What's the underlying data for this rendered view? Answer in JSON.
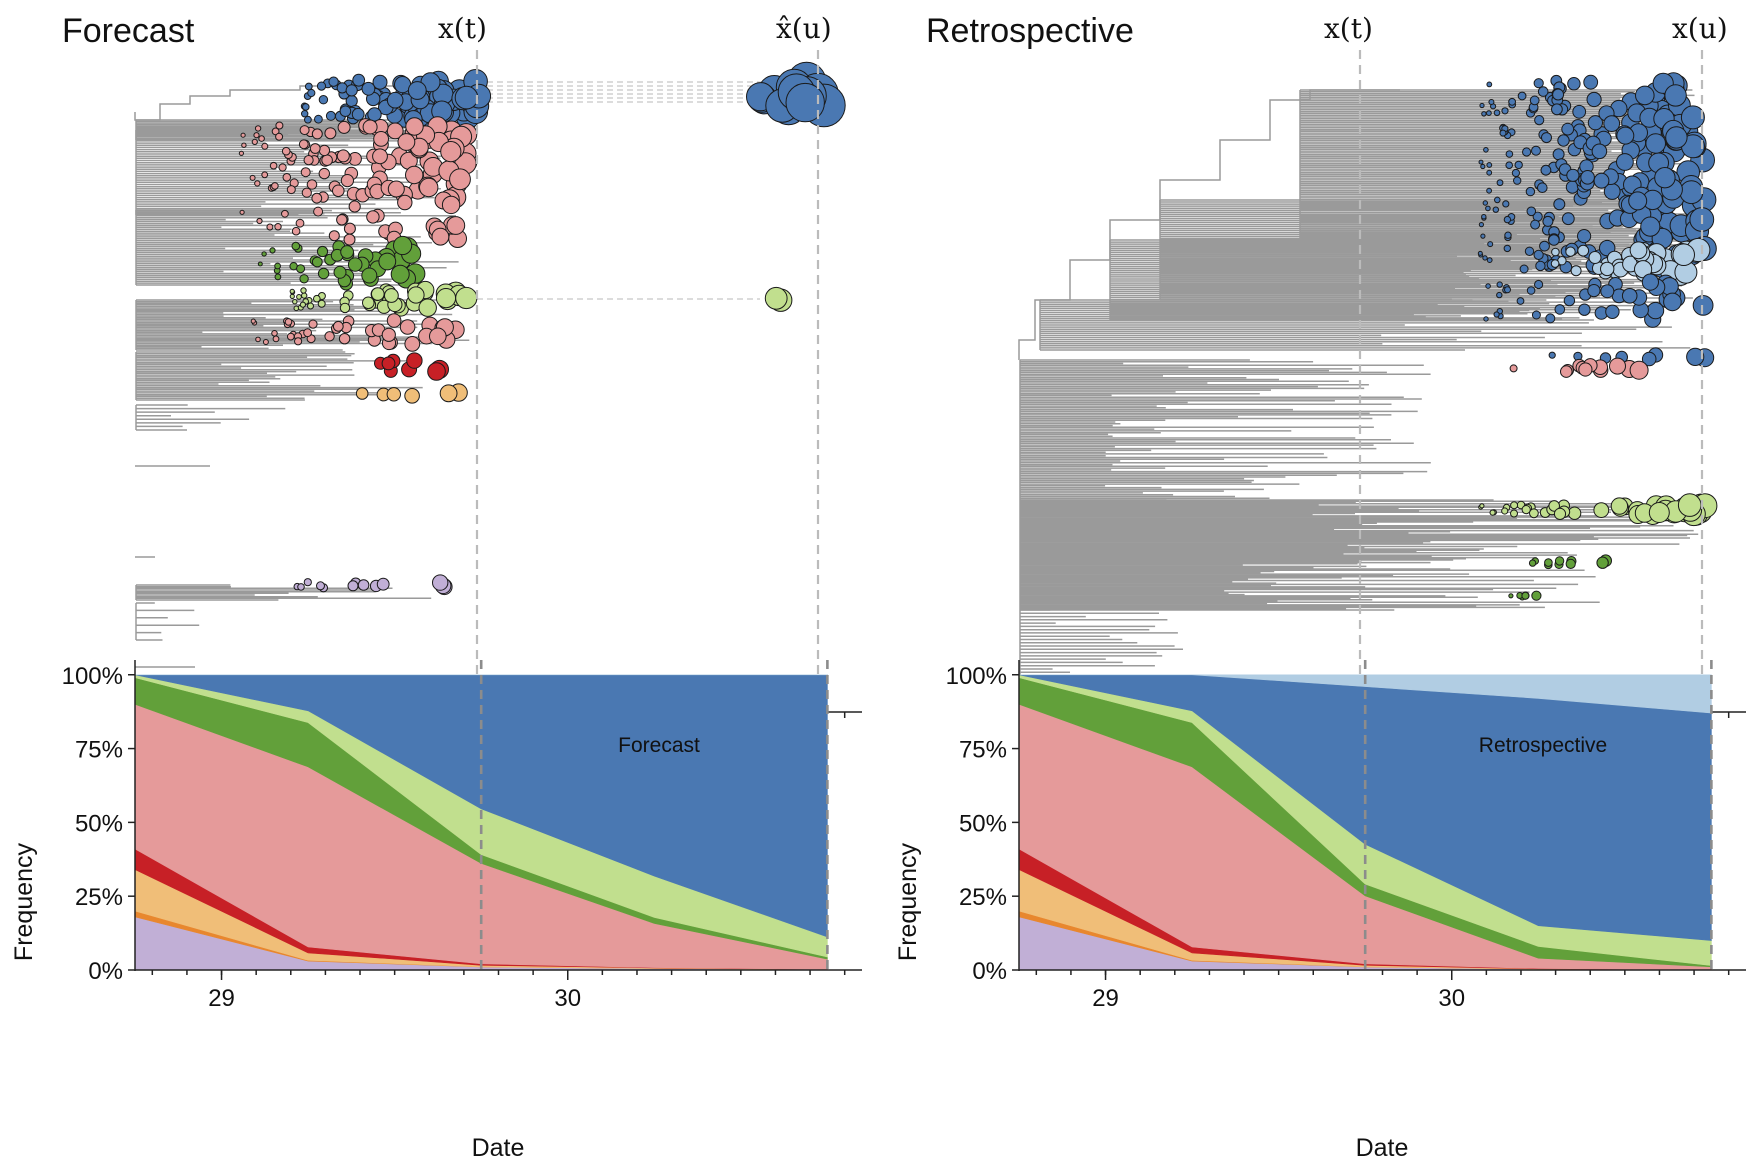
{
  "colors": {
    "blue": "#4a78b2",
    "light_blue": "#b1cde3",
    "pink": "#e59a9a",
    "dark_green": "#62a03a",
    "light_green": "#c1df8e",
    "red": "#c72026",
    "orange_light": "#f0be78",
    "orange": "#e8872e",
    "purple": "#c1afd6",
    "branch_gray": "#9a9a9a"
  },
  "chart_data": [
    {
      "type": "tree",
      "title": "Forecast",
      "markers": [
        "x(t)",
        "x̂(u)"
      ],
      "x_ticks": [
        29,
        30
      ],
      "clades": [
        {
          "color": "blue",
          "timepoint_t": "large",
          "timepoint_u": "very large"
        },
        {
          "color": "pink",
          "timepoint_t": "large"
        },
        {
          "color": "dark_green",
          "timepoint_t": "medium"
        },
        {
          "color": "light_green",
          "timepoint_t": "medium",
          "timepoint_u": "small"
        },
        {
          "color": "red",
          "timepoint_t": "small"
        },
        {
          "color": "orange_light",
          "timepoint_t": "small"
        },
        {
          "color": "purple",
          "timepoint_t": "small"
        }
      ]
    },
    {
      "type": "tree",
      "title": "Retrospective",
      "markers": [
        "x(t)",
        "x(u)"
      ],
      "x_ticks": [
        29,
        30
      ],
      "clades": [
        {
          "color": "blue",
          "timepoint_u": "large"
        },
        {
          "color": "light_blue",
          "timepoint_u": "medium"
        },
        {
          "color": "pink",
          "timepoint_u": "small"
        },
        {
          "color": "light_green",
          "timepoint_u": "medium"
        },
        {
          "color": "dark_green",
          "timepoint_u": "small"
        }
      ]
    },
    {
      "type": "area",
      "stacked": true,
      "label": "Forecast",
      "xlabel": "Date",
      "ylabel": "Frequency",
      "x": [
        28.75,
        29.25,
        29.75,
        30.25,
        30.75
      ],
      "x_tick_labels": [
        "29",
        "30"
      ],
      "x_ticks": [
        29,
        30
      ],
      "ylim": [
        0,
        1.05
      ],
      "y_ticks": [
        0,
        0.25,
        0.5,
        0.75,
        1.0
      ],
      "y_tick_labels": [
        "0%",
        "25%",
        "50%",
        "75%",
        "100%"
      ],
      "vlines": [
        29.75,
        30.75
      ],
      "series": [
        {
          "color": "purple",
          "values": [
            0.18,
            0.03,
            0.01,
            0.005,
            0.002
          ]
        },
        {
          "color": "orange",
          "values": [
            0.02,
            0.003,
            0.001,
            0.0,
            0.0
          ]
        },
        {
          "color": "orange_light",
          "values": [
            0.14,
            0.025,
            0.005,
            0.002,
            0.0
          ]
        },
        {
          "color": "red",
          "values": [
            0.07,
            0.02,
            0.005,
            0.001,
            0.0
          ]
        },
        {
          "color": "pink",
          "values": [
            0.49,
            0.61,
            0.34,
            0.15,
            0.035
          ]
        },
        {
          "color": "dark_green",
          "values": [
            0.09,
            0.15,
            0.03,
            0.02,
            0.007
          ]
        },
        {
          "color": "light_green",
          "values": [
            0.01,
            0.04,
            0.155,
            0.14,
            0.068
          ]
        },
        {
          "color": "blue",
          "values": [
            0.0,
            0.122,
            0.454,
            0.682,
            0.888
          ]
        },
        {
          "color": "light_blue",
          "values": [
            0.0,
            0.0,
            0.0,
            0.0,
            0.0
          ]
        }
      ]
    },
    {
      "type": "area",
      "stacked": true,
      "label": "Retrospective",
      "xlabel": "Date",
      "ylabel": "Frequency",
      "x": [
        28.75,
        29.25,
        29.75,
        30.25,
        30.75
      ],
      "x_tick_labels": [
        "29",
        "30"
      ],
      "x_ticks": [
        29,
        30
      ],
      "ylim": [
        0,
        1.05
      ],
      "y_ticks": [
        0,
        0.25,
        0.5,
        0.75,
        1.0
      ],
      "y_tick_labels": [
        "0%",
        "25%",
        "50%",
        "75%",
        "100%"
      ],
      "vlines": [
        29.75,
        30.75
      ],
      "series": [
        {
          "color": "purple",
          "values": [
            0.18,
            0.03,
            0.01,
            0.003,
            0.001
          ]
        },
        {
          "color": "orange",
          "values": [
            0.02,
            0.003,
            0.001,
            0.0,
            0.0
          ]
        },
        {
          "color": "orange_light",
          "values": [
            0.14,
            0.025,
            0.005,
            0.001,
            0.0
          ]
        },
        {
          "color": "red",
          "values": [
            0.07,
            0.02,
            0.005,
            0.001,
            0.0
          ]
        },
        {
          "color": "pink",
          "values": [
            0.49,
            0.61,
            0.23,
            0.035,
            0.01
          ]
        },
        {
          "color": "dark_green",
          "values": [
            0.09,
            0.15,
            0.04,
            0.04,
            0.004
          ]
        },
        {
          "color": "light_green",
          "values": [
            0.01,
            0.04,
            0.135,
            0.07,
            0.085
          ]
        },
        {
          "color": "blue",
          "values": [
            0.0,
            0.122,
            0.534,
            0.77,
            0.77
          ]
        },
        {
          "color": "light_blue",
          "values": [
            0.0,
            0.0,
            0.04,
            0.08,
            0.13
          ]
        }
      ]
    }
  ]
}
